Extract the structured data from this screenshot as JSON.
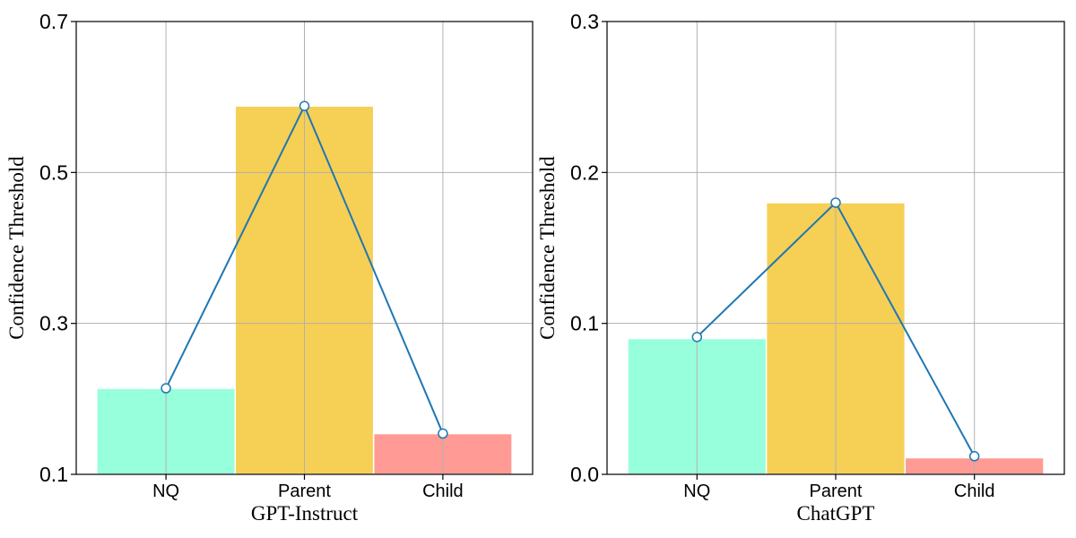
{
  "colors": {
    "categories": [
      "#98ffdc",
      "#f6cf55",
      "#ff9b94"
    ],
    "line": "#1f77b4",
    "marker_fill": "#ffffff",
    "grid": "#b0b0b0"
  },
  "chart_data": [
    {
      "type": "bar",
      "categories": [
        "NQ",
        "Parent",
        "Child"
      ],
      "values": [
        0.214,
        0.588,
        0.154
      ],
      "overlay_line": {
        "type": "line",
        "values": [
          0.214,
          0.588,
          0.154
        ],
        "marker": "circle"
      },
      "xlabel": "GPT-Instruct",
      "ylabel": "Confidence Threshold",
      "ylim": [
        0.1,
        0.7
      ],
      "yticks": [
        0.1,
        0.3,
        0.5,
        0.7
      ],
      "ytick_labels": [
        "0.1",
        "0.3",
        "0.5",
        "0.7"
      ],
      "grid": true
    },
    {
      "type": "bar",
      "categories": [
        "NQ",
        "Parent",
        "Child"
      ],
      "values": [
        0.09,
        0.18,
        0.011
      ],
      "overlay_line": {
        "type": "line",
        "values": [
          0.091,
          0.18,
          0.012
        ],
        "marker": "circle"
      },
      "xlabel": "ChatGPT",
      "ylabel": "Confidence Threshold",
      "ylim": [
        0.0,
        0.3
      ],
      "yticks": [
        0.0,
        0.1,
        0.2,
        0.3
      ],
      "ytick_labels": [
        "0.0",
        "0.1",
        "0.2",
        "0.3"
      ],
      "grid": true
    }
  ]
}
